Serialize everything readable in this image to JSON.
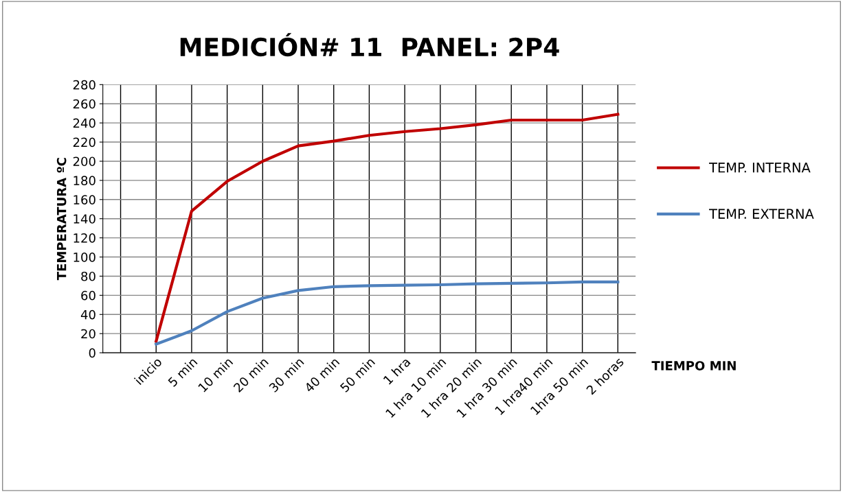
{
  "chart_data": {
    "type": "line",
    "title": "MEDICIÓN# 11  PANEL: 2P4",
    "xlabel": "TIEMPO MIN",
    "ylabel": "TEMPERATURA ºC",
    "categories": [
      null,
      "inicio",
      "5 min",
      "10 min",
      "20 min",
      "30 min",
      "40 min",
      "50 min",
      "1 hra",
      "1 hra 10 min",
      "1 hra 20 min",
      "1 hra 30 min",
      "1 hra40 min",
      "1hra 50 min",
      "2 horas"
    ],
    "series": [
      {
        "name": "TEMP. INTERNA",
        "color": "#c00000",
        "values": [
          null,
          12,
          148,
          179,
          200,
          216,
          221,
          227,
          231,
          234,
          238,
          243,
          243,
          243,
          249
        ]
      },
      {
        "name": "TEMP. EXTERNA",
        "color": "#4f81bd",
        "values": [
          null,
          9,
          23,
          43,
          57,
          65,
          69,
          70,
          70.5,
          71,
          72,
          72.5,
          73,
          74,
          74
        ]
      }
    ],
    "ylim": [
      0,
      280
    ],
    "yticks": [
      0,
      20,
      40,
      60,
      80,
      100,
      120,
      140,
      160,
      180,
      200,
      220,
      240,
      260,
      280
    ],
    "grid": true,
    "legend": "right",
    "marker": "none",
    "line_style": "solid"
  }
}
